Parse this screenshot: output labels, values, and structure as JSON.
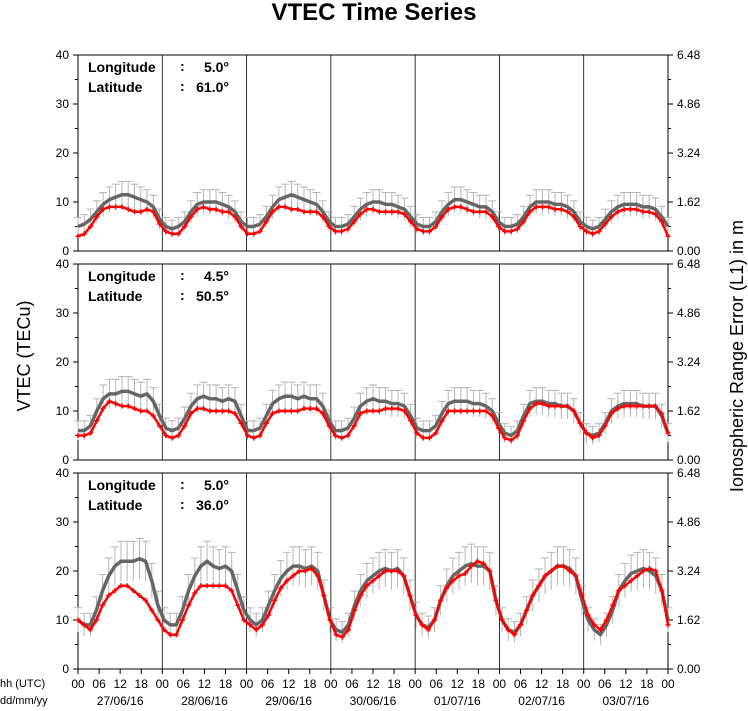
{
  "chart_data": {
    "type": "line",
    "title": "VTEC Time Series",
    "ylabel_left": "VTEC (TECu)",
    "ylabel_right": "Ionospheric Range Error (L1) in m",
    "xlabel_hour": "hh (UTC)",
    "xlabel_date": "dd/mm/yy",
    "hour_ticks": [
      "00",
      "06",
      "12",
      "18",
      "00",
      "06",
      "12",
      "18",
      "00",
      "06",
      "12",
      "18",
      "00",
      "06",
      "12",
      "18",
      "00",
      "06",
      "12",
      "18",
      "00",
      "06",
      "12",
      "18",
      "00",
      "06",
      "12",
      "18",
      "00"
    ],
    "dates": [
      "27/06/16",
      "28/06/16",
      "29/06/16",
      "30/06/16",
      "01/07/16",
      "02/07/16",
      "03/07/16"
    ],
    "left_yticks": [
      "0",
      "10",
      "20",
      "30",
      "40"
    ],
    "right_yticks": [
      "0.00",
      "1.62",
      "3.24",
      "4.86",
      "6.48"
    ],
    "ylim": [
      0,
      40
    ],
    "panels": [
      {
        "longitude_label": "Longitude",
        "longitude_value": "5.0°",
        "latitude_label": "Latitude",
        "latitude_value": "61.0°",
        "series": [
          {
            "color": "#666666",
            "error_bars": true,
            "values": [
              5,
              5.5,
              6.5,
              8,
              9.5,
              10.5,
              11,
              11.5,
              11.5,
              11,
              10.5,
              10,
              9,
              6.5,
              5,
              4.5,
              5,
              6,
              8,
              9.5,
              10,
              10,
              10,
              9.5,
              9,
              8,
              6,
              5,
              5,
              5.5,
              7,
              9,
              10.5,
              11,
              11.5,
              11,
              10.5,
              10,
              9.5,
              8,
              6,
              5,
              5,
              5.5,
              7,
              8.5,
              9.5,
              10,
              10,
              9.5,
              9.5,
              9,
              8.5,
              7,
              5.5,
              5,
              5,
              6,
              8,
              9.5,
              10.5,
              10.5,
              10,
              9.5,
              9,
              9,
              8,
              6,
              5,
              5,
              5.5,
              7,
              9,
              10,
              10,
              10,
              9.5,
              9.5,
              9,
              8,
              6,
              5,
              4.5,
              5,
              6.5,
              8,
              9,
              9.5,
              9.5,
              9.5,
              9,
              9,
              8.5,
              7,
              5
            ]
          },
          {
            "color": "#ff0000",
            "error_bars": false,
            "values": [
              3,
              3.5,
              5,
              7,
              8.5,
              9,
              9,
              9,
              8.5,
              8,
              8,
              8.5,
              8,
              5.5,
              4,
              3.5,
              3.5,
              5,
              7,
              8.5,
              9,
              8.5,
              8.5,
              8,
              8,
              7,
              5,
              3.5,
              3.5,
              4,
              6,
              8,
              9,
              9,
              8.5,
              8.5,
              8,
              8,
              8,
              7,
              5,
              4,
              4,
              4.5,
              6,
              7.5,
              8.5,
              8.5,
              8,
              8,
              8,
              8,
              7.5,
              6,
              4.5,
              4,
              4,
              5,
              7,
              8.5,
              9,
              9,
              8.5,
              8,
              8,
              8,
              7,
              5,
              4,
              4,
              4.5,
              6,
              8,
              9,
              9,
              9,
              8.5,
              8.5,
              8,
              7,
              5,
              4,
              3.5,
              4,
              5.5,
              7,
              8,
              8.5,
              8.5,
              8.5,
              8,
              8,
              7.5,
              6,
              3
            ]
          }
        ]
      },
      {
        "longitude_label": "Longitude",
        "longitude_value": "4.5°",
        "latitude_label": "Latitude",
        "latitude_value": "50.5°",
        "series": [
          {
            "color": "#666666",
            "error_bars": true,
            "values": [
              6,
              6,
              7,
              10,
              12.5,
              13.5,
              13.5,
              14,
              14,
              13.5,
              13,
              13.5,
              12,
              9,
              6.5,
              6,
              6.5,
              8.5,
              11,
              12.5,
              13,
              12.5,
              12.5,
              12,
              12.5,
              12,
              9,
              6,
              6,
              6.5,
              9,
              11.5,
              12.5,
              13,
              13,
              12.5,
              13,
              12.5,
              12.5,
              11,
              8,
              6,
              6,
              6.5,
              8.5,
              11,
              12,
              12.5,
              12,
              12,
              11.5,
              11.5,
              11,
              9,
              6.5,
              6,
              6,
              7,
              9.5,
              11.5,
              12,
              12,
              12,
              11.5,
              11.5,
              11,
              10,
              7.5,
              5.5,
              5,
              6,
              9,
              11.5,
              12,
              12,
              11.5,
              11.5,
              11,
              11,
              10,
              7.5,
              5.5,
              5,
              5.5,
              7.5,
              10,
              11,
              11.5,
              11.5,
              11.5,
              11,
              11,
              11,
              9,
              5.5
            ]
          },
          {
            "color": "#ff0000",
            "error_bars": false,
            "values": [
              5,
              5,
              5.5,
              8,
              10.5,
              12,
              11.5,
              11,
              11,
              10.5,
              10,
              10,
              9,
              7,
              5,
              4.5,
              5,
              7,
              9.5,
              10.5,
              10.5,
              10,
              10,
              10,
              10,
              9.5,
              7.5,
              5,
              4.5,
              5,
              7.5,
              9.5,
              10,
              10,
              10,
              10,
              10.5,
              10.5,
              10.5,
              9.5,
              7,
              5,
              4.5,
              5,
              7,
              9.5,
              10,
              10,
              10,
              10.5,
              10.5,
              10.5,
              10,
              8,
              5.5,
              4.5,
              4.5,
              5.5,
              8,
              10,
              10,
              10,
              10,
              10,
              10,
              10,
              9,
              6.5,
              4.5,
              4,
              5,
              8,
              10.5,
              11.5,
              11.5,
              11,
              11,
              11,
              11,
              10,
              7.5,
              5.5,
              4.5,
              5,
              7,
              9.5,
              10.5,
              11,
              11,
              11,
              11,
              11,
              11,
              9.5,
              5.5
            ]
          }
        ]
      },
      {
        "longitude_label": "Longitude",
        "longitude_value": "5.0°",
        "latitude_label": "Latitude",
        "latitude_value": "36.0°",
        "series": [
          {
            "color": "#666666",
            "error_bars": true,
            "values": [
              10,
              9,
              9,
              12,
              16,
              19,
              21,
              22,
              22,
              22,
              22.5,
              22,
              18,
              13,
              10,
              9,
              9,
              12,
              16,
              19,
              21,
              22,
              21,
              20.5,
              21,
              20,
              16,
              12,
              10,
              9,
              10,
              13,
              16,
              18.5,
              20,
              21,
              21,
              20.5,
              21,
              20,
              15,
              10,
              8,
              7.5,
              9,
              13,
              16,
              18,
              19,
              20,
              20.5,
              20,
              20.5,
              19,
              15,
              11,
              9,
              8.5,
              10,
              14,
              17,
              19,
              20,
              21,
              21.5,
              21,
              21,
              20,
              14,
              10,
              8,
              7.5,
              9,
              12,
              15,
              17,
              19,
              20,
              21,
              21,
              20.5,
              19,
              14,
              10,
              8,
              7,
              9,
              12,
              16,
              18,
              19.5,
              20,
              20.5,
              20,
              19,
              16,
              10
            ]
          },
          {
            "color": "#ff0000",
            "error_bars": false,
            "values": [
              10,
              9,
              8,
              10,
              13,
              15,
              16,
              17,
              17,
              16,
              15,
              14,
              12,
              10,
              8,
              7,
              7,
              10,
              13,
              15.5,
              17,
              17,
              17,
              17,
              17,
              16,
              13,
              10,
              9,
              8,
              9,
              11,
              14,
              16.5,
              18,
              19,
              20,
              20,
              20.5,
              19,
              15,
              10,
              7,
              6.5,
              8,
              12,
              15,
              17,
              18,
              19,
              20,
              20,
              20,
              19,
              15,
              11,
              9,
              8,
              10,
              14,
              16.5,
              18,
              19,
              19.5,
              21,
              22,
              21.5,
              20,
              14,
              10,
              8,
              7,
              9,
              12,
              15,
              17,
              19,
              20,
              21,
              21,
              20,
              19,
              15,
              11,
              9,
              8,
              10,
              13,
              16,
              17,
              18,
              19,
              20,
              20.5,
              20,
              16,
              9
            ]
          }
        ]
      }
    ]
  }
}
